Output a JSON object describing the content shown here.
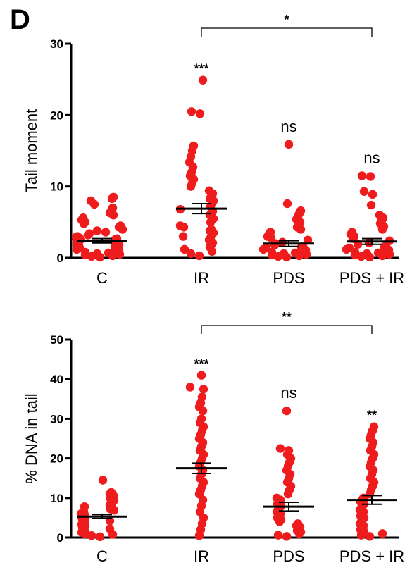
{
  "figure": {
    "panel_label": "D"
  },
  "colors": {
    "points": "#ee1c1c",
    "axis": "#000000",
    "mean_line": "#000000"
  },
  "chart_data": [
    {
      "type": "scatter",
      "title": "",
      "ylabel": "Tail moment",
      "xlabel": "",
      "categories": [
        "C",
        "IR",
        "PDS",
        "PDS + IR"
      ],
      "ylim": [
        0,
        30
      ],
      "yticks": [
        0,
        10,
        20,
        30
      ],
      "grid": false,
      "legend": "none",
      "group_stats": [
        {
          "mean": 2.4,
          "sem": 0.3
        },
        {
          "mean": 6.9,
          "sem": 0.7
        },
        {
          "mean": 2.0,
          "sem": 0.4
        },
        {
          "mean": 2.3,
          "sem": 0.4
        }
      ],
      "annotations": [
        "",
        "***",
        "ns",
        "ns"
      ],
      "comparison": {
        "groups": [
          "IR",
          "PDS + IR"
        ],
        "label": "*"
      },
      "points": [
        [
          0.1,
          0.2,
          0.3,
          0.4,
          0.5,
          0.6,
          0.7,
          0.8,
          0.9,
          1.0,
          1.1,
          1.2,
          1.3,
          1.4,
          1.5,
          1.6,
          1.7,
          1.8,
          1.9,
          2.0,
          2.1,
          2.2,
          2.3,
          2.4,
          2.5,
          2.6,
          2.7,
          2.8,
          2.9,
          3.0,
          3.2,
          3.4,
          3.6,
          3.8,
          4.0,
          4.3,
          4.5,
          4.8,
          5.0,
          5.3,
          5.6,
          6.0,
          6.3,
          6.5,
          7.0,
          7.5,
          8.0,
          8.3,
          8.5
        ],
        [
          0.3,
          0.6,
          0.9,
          1.2,
          1.5,
          1.8,
          2.1,
          2.5,
          2.8,
          3.0,
          3.5,
          3.8,
          4.0,
          4.3,
          4.5,
          5.0,
          5.3,
          5.5,
          6.0,
          6.3,
          6.5,
          6.8,
          7.2,
          7.6,
          8.0,
          8.3,
          8.6,
          9.0,
          9.4,
          10.0,
          10.5,
          11.0,
          11.5,
          12.0,
          12.7,
          13.4,
          14.2,
          15.0,
          15.7,
          20.2,
          20.5,
          24.9
        ],
        [
          0.1,
          0.2,
          0.3,
          0.4,
          0.5,
          0.6,
          0.7,
          0.8,
          0.9,
          1.0,
          1.1,
          1.2,
          1.3,
          1.4,
          1.5,
          1.6,
          1.8,
          2.0,
          2.2,
          2.5,
          2.8,
          3.0,
          3.3,
          3.6,
          4.0,
          4.3,
          4.6,
          5.0,
          5.4,
          5.8,
          6.2,
          6.6,
          7.6,
          15.9
        ],
        [
          0.1,
          0.2,
          0.3,
          0.4,
          0.5,
          0.6,
          0.7,
          0.8,
          0.9,
          1.0,
          1.1,
          1.2,
          1.3,
          1.4,
          1.5,
          1.7,
          1.9,
          2.1,
          2.4,
          2.7,
          3.0,
          3.3,
          3.6,
          4.0,
          4.4,
          4.8,
          5.2,
          5.6,
          6.0,
          7.4,
          8.9,
          9.3,
          11.4,
          11.5
        ]
      ]
    },
    {
      "type": "scatter",
      "title": "",
      "ylabel": "% DNA in tail",
      "xlabel": "",
      "categories": [
        "C",
        "IR",
        "PDS",
        "PDS + IR"
      ],
      "ylim": [
        0,
        50
      ],
      "yticks": [
        0,
        10,
        20,
        30,
        40,
        50
      ],
      "grid": false,
      "legend": "none",
      "group_stats": [
        {
          "mean": 5.3,
          "sem": 0.5
        },
        {
          "mean": 17.5,
          "sem": 1.3
        },
        {
          "mean": 7.8,
          "sem": 1.1
        },
        {
          "mean": 9.5,
          "sem": 1.1
        }
      ],
      "annotations": [
        "",
        "***",
        "ns",
        "**"
      ],
      "comparison": {
        "groups": [
          "IR",
          "PDS + IR"
        ],
        "label": "**"
      },
      "points": [
        [
          0.2,
          0.5,
          0.8,
          1.0,
          1.3,
          1.6,
          1.9,
          2.2,
          2.5,
          2.8,
          3.0,
          3.3,
          3.6,
          3.9,
          4.2,
          4.5,
          4.8,
          5.0,
          5.2,
          5.5,
          5.8,
          6.0,
          6.3,
          6.6,
          6.9,
          7.2,
          7.5,
          7.8,
          8.2,
          8.6,
          9.0,
          9.4,
          9.8,
          10.2,
          10.6,
          11.0,
          11.4,
          14.5
        ],
        [
          0.5,
          2.0,
          3.5,
          5.0,
          6.5,
          8.0,
          9.5,
          11.0,
          12.0,
          13.0,
          14.0,
          15.0,
          16.0,
          17.0,
          18.0,
          19.0,
          20.0,
          21.0,
          22.0,
          23.0,
          24.0,
          25.0,
          26.0,
          27.0,
          28.0,
          29.0,
          30.0,
          32.0,
          33.0,
          34.0,
          35.5,
          37.5,
          38.0,
          41.0
        ],
        [
          0.3,
          0.6,
          1.0,
          1.4,
          1.8,
          2.2,
          2.6,
          3.0,
          3.5,
          4.0,
          4.5,
          5.0,
          5.5,
          6.0,
          6.5,
          7.0,
          7.5,
          8.0,
          8.5,
          9.0,
          9.5,
          10.0,
          11.0,
          12.0,
          13.0,
          14.0,
          15.0,
          16.0,
          17.0,
          18.0,
          19.0,
          20.0,
          21.0,
          22.0,
          22.5,
          32.0
        ],
        [
          0.3,
          0.6,
          1.0,
          1.5,
          2.0,
          2.5,
          3.0,
          3.5,
          4.0,
          4.5,
          5.0,
          5.5,
          6.0,
          6.5,
          7.0,
          7.5,
          8.0,
          8.5,
          9.0,
          9.5,
          10.0,
          11.0,
          12.0,
          13.0,
          14.0,
          15.0,
          16.0,
          17.0,
          18.0,
          19.0,
          20.0,
          21.0,
          22.0,
          23.0,
          24.0,
          25.0,
          26.0,
          27.0,
          28.0
        ]
      ]
    }
  ]
}
